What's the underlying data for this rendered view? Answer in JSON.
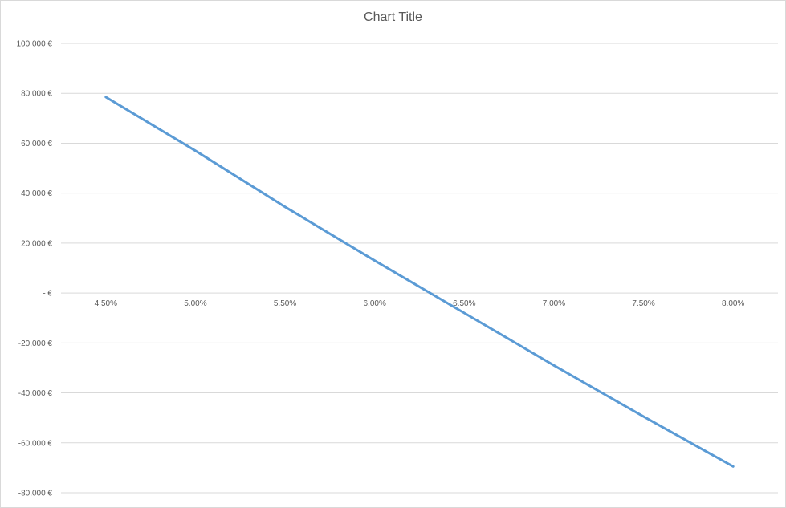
{
  "chart_data": {
    "type": "line",
    "title": "Chart Title",
    "x": [
      "4.50%",
      "5.00%",
      "5.50%",
      "6.00%",
      "6.50%",
      "7.00%",
      "7.50%",
      "8.00%"
    ],
    "series": [
      {
        "values": [
          78500,
          57000,
          34500,
          13000,
          -8000,
          -29000,
          -49500,
          -69500
        ]
      }
    ],
    "y_ticks": [
      {
        "value": 100000,
        "label": "100,000 €"
      },
      {
        "value": 80000,
        "label": "80,000 €"
      },
      {
        "value": 60000,
        "label": "60,000 €"
      },
      {
        "value": 40000,
        "label": "40,000 €"
      },
      {
        "value": 20000,
        "label": "20,000 €"
      },
      {
        "value": 0,
        "label": "-   €"
      },
      {
        "value": -20000,
        "label": "-20,000 €"
      },
      {
        "value": -40000,
        "label": "-40,000 €"
      },
      {
        "value": -60000,
        "label": "-60,000 €"
      },
      {
        "value": -80000,
        "label": "-80,000 €"
      }
    ],
    "ylim": [
      -80000,
      100000
    ],
    "grid": true,
    "line_color": "#5b9bd5"
  }
}
